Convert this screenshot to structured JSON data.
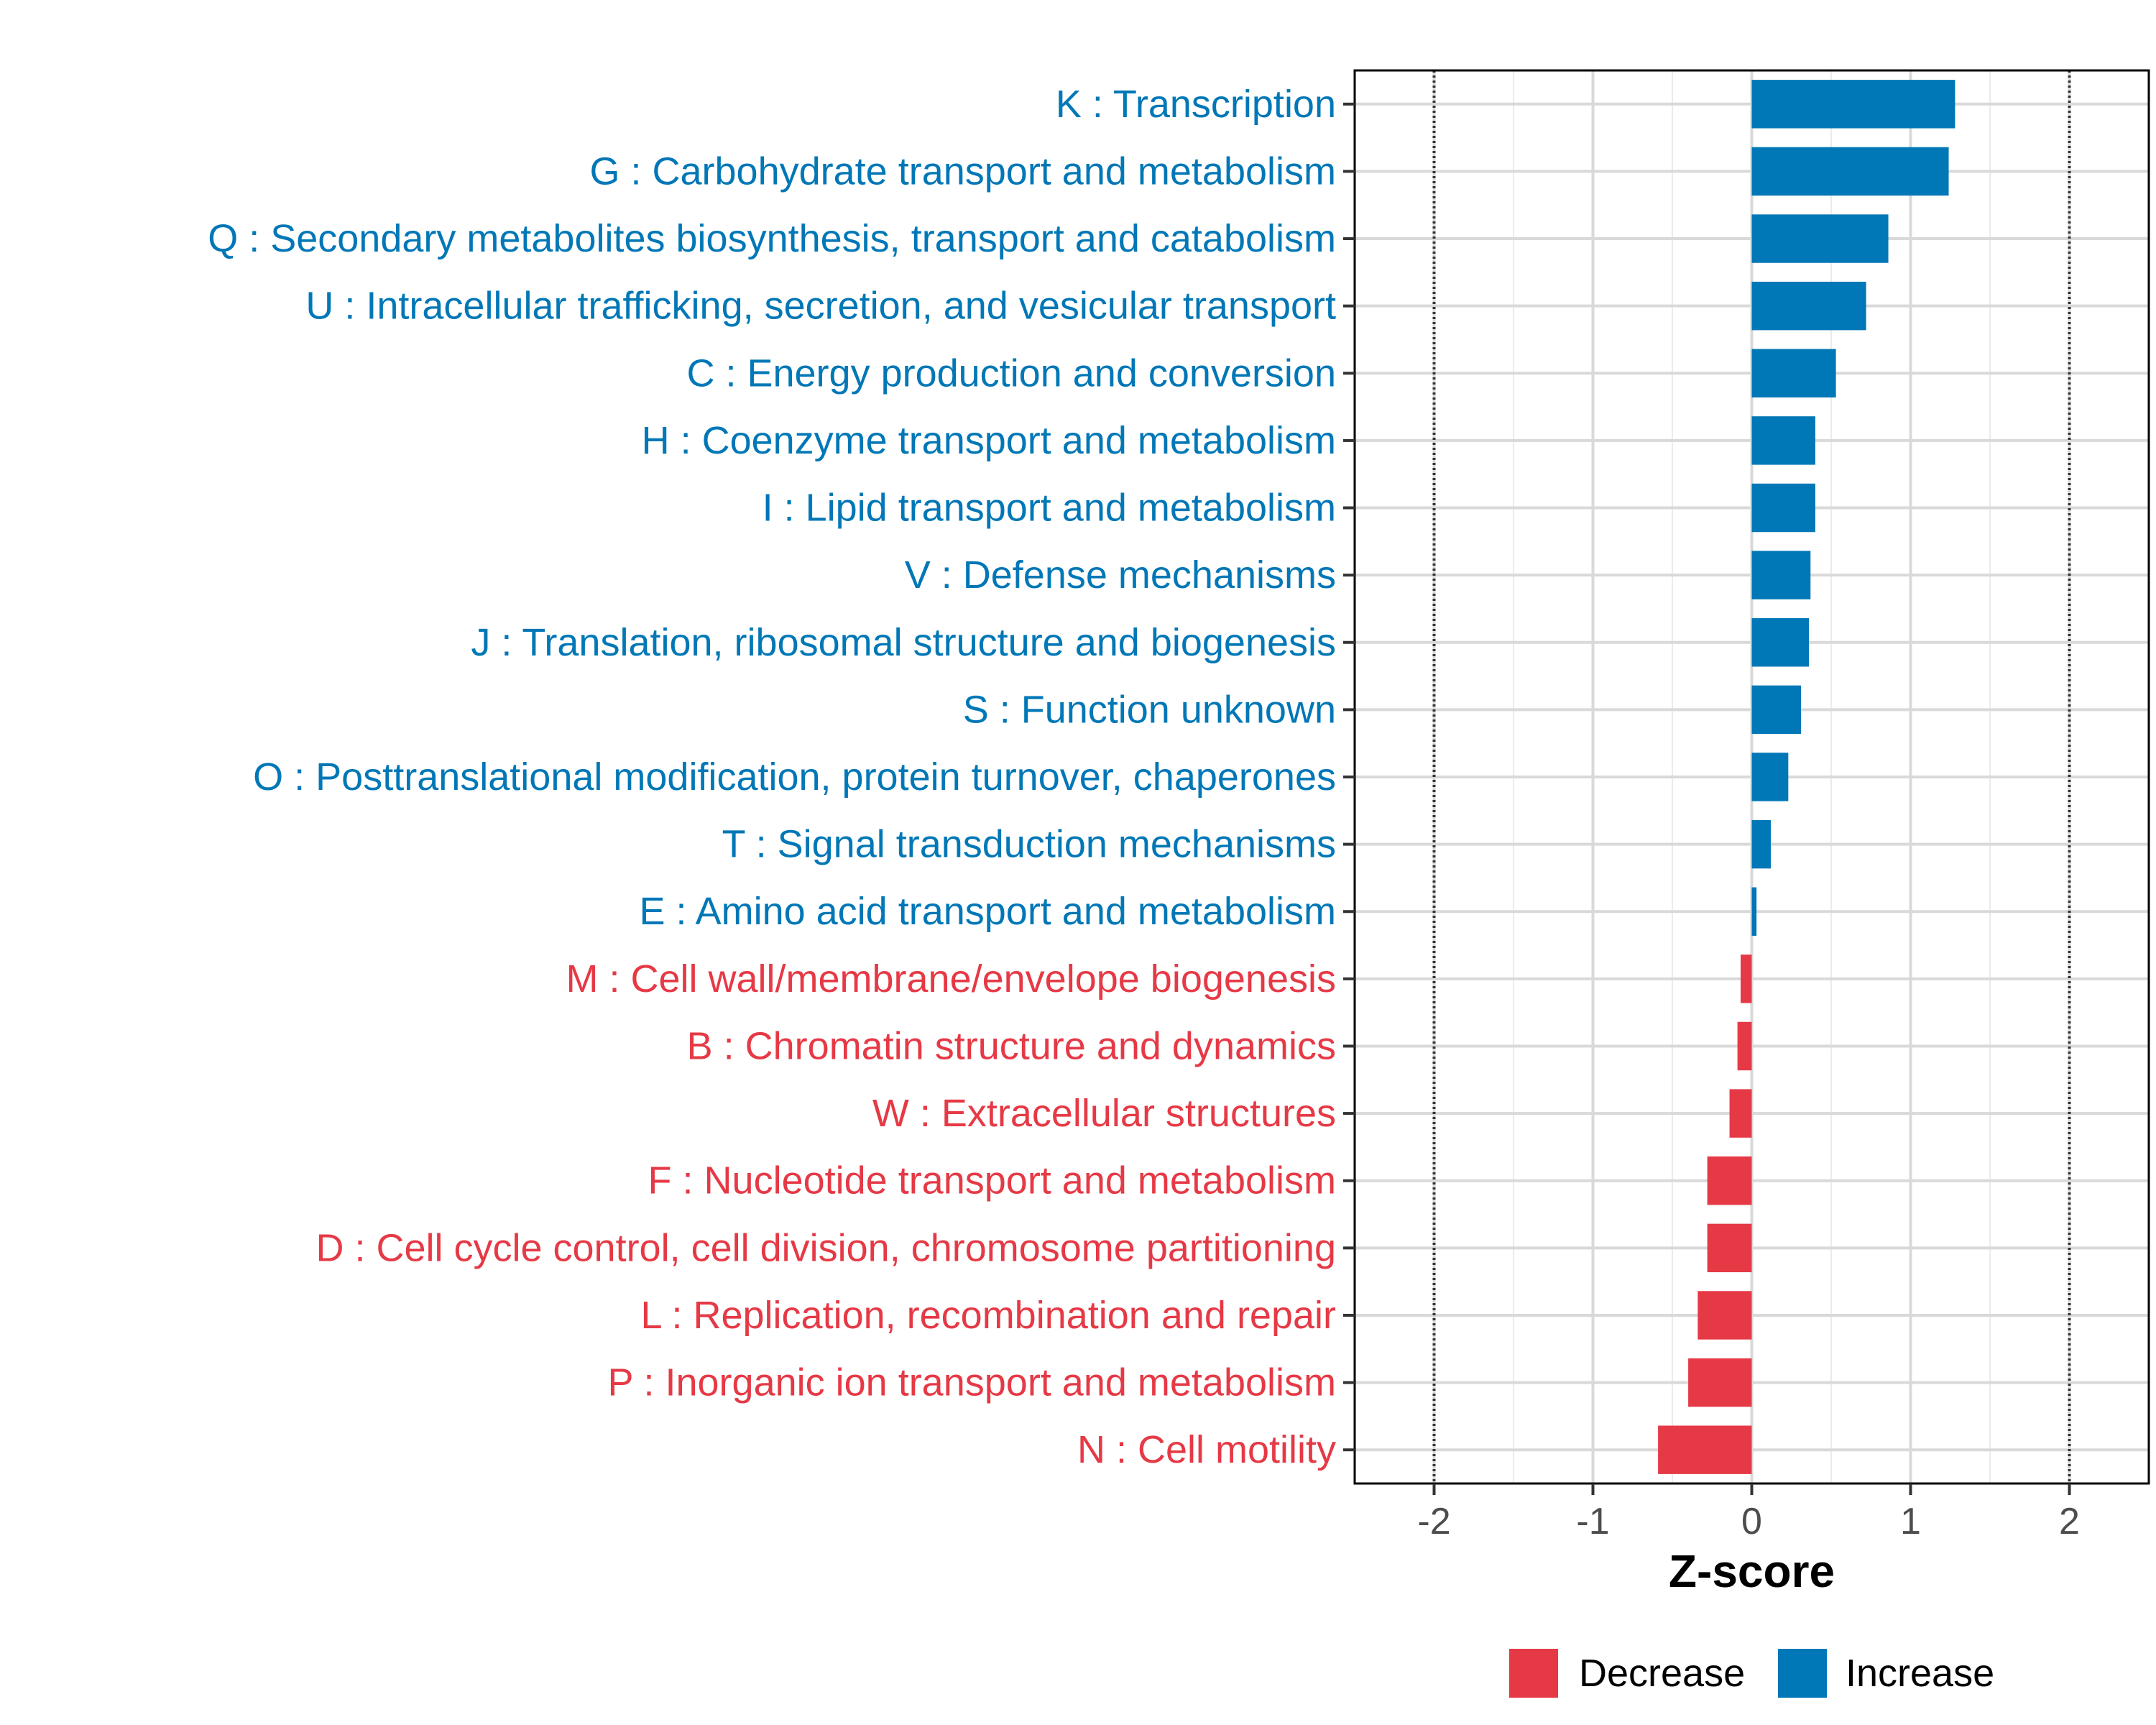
{
  "chart_data": {
    "type": "bar",
    "orientation": "horizontal",
    "title": "",
    "xlabel": "Z-score",
    "ylabel": "",
    "xlim": [
      -2.5,
      2.5
    ],
    "xticks": [
      -2,
      -1,
      0,
      1,
      2
    ],
    "xtick_labels": [
      "-2",
      "-1",
      "0",
      "1",
      "2"
    ],
    "reference_lines": [
      -2,
      2
    ],
    "grid": true,
    "legend_position": "bottom",
    "colors": {
      "Decrease": "#e63946",
      "Increase": "#0077b6"
    },
    "categories": [
      "K : Transcription",
      "G : Carbohydrate transport and metabolism",
      "Q : Secondary metabolites biosynthesis, transport and catabolism",
      "U : Intracellular trafficking, secretion, and vesicular transport",
      "C : Energy production and conversion",
      "H : Coenzyme transport and metabolism",
      "I : Lipid transport and metabolism",
      "V : Defense mechanisms",
      "J : Translation, ribosomal structure and biogenesis",
      "S : Function unknown",
      "O : Posttranslational modification, protein turnover, chaperones",
      "T : Signal transduction mechanisms",
      "E : Amino acid transport and metabolism",
      "M : Cell wall/membrane/envelope biogenesis",
      "B : Chromatin structure and dynamics",
      "W : Extracellular structures",
      "F : Nucleotide transport and metabolism",
      "D : Cell cycle control, cell division, chromosome partitioning",
      "L : Replication, recombination and repair",
      "P : Inorganic ion transport and metabolism",
      "N : Cell motility"
    ],
    "values": [
      1.28,
      1.24,
      0.86,
      0.72,
      0.53,
      0.4,
      0.4,
      0.37,
      0.36,
      0.31,
      0.23,
      0.12,
      0.03,
      -0.07,
      -0.09,
      -0.14,
      -0.28,
      -0.28,
      -0.34,
      -0.4,
      -0.59
    ],
    "groups": [
      "Increase",
      "Increase",
      "Increase",
      "Increase",
      "Increase",
      "Increase",
      "Increase",
      "Increase",
      "Increase",
      "Increase",
      "Increase",
      "Increase",
      "Increase",
      "Decrease",
      "Decrease",
      "Decrease",
      "Decrease",
      "Decrease",
      "Decrease",
      "Decrease",
      "Decrease"
    ],
    "legend": [
      "Decrease",
      "Increase"
    ]
  }
}
